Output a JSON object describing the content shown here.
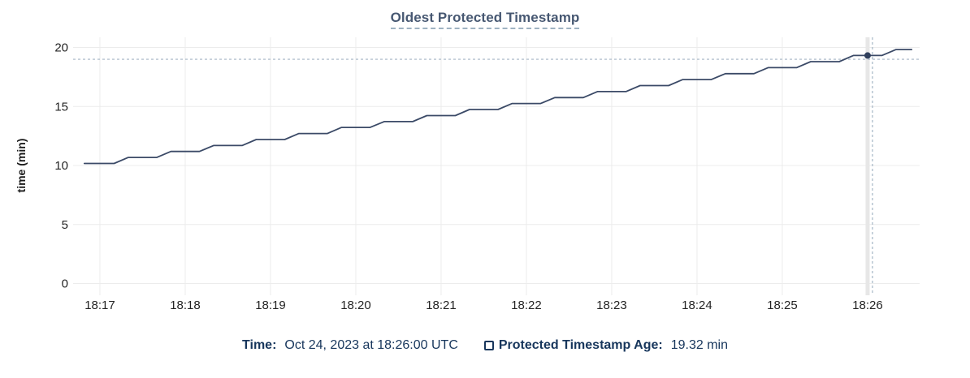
{
  "title": "Oldest Protected Timestamp",
  "y_axis_label": "time (min)",
  "legend": {
    "time_label": "Time:",
    "time_value": "Oct 24, 2023 at 18:26:00 UTC",
    "series_label": "Protected Timestamp Age:",
    "series_value": "19.32 min"
  },
  "colors": {
    "line": "#3b4a67",
    "marker": "#303f5c",
    "title_text": "#475872",
    "legend_text": "#17365c",
    "grid": "#ececec",
    "hover_band": "#e7e7e7",
    "crosshair": "#a4b5c4",
    "tick_text": "#242424"
  },
  "chart_data": {
    "type": "line",
    "title": "Oldest Protected Timestamp",
    "xlabel": "",
    "ylabel": "time (min)",
    "grid": true,
    "legend_position": "bottom",
    "x_tick_labels": [
      "18:17",
      "18:18",
      "18:19",
      "18:20",
      "18:21",
      "18:22",
      "18:23",
      "18:24",
      "18:25",
      "18:26"
    ],
    "x_tick_minutes": [
      0,
      1,
      2,
      3,
      4,
      5,
      6,
      7,
      8,
      9
    ],
    "x_range_minutes": [
      -0.314,
      9.61
    ],
    "ylim": [
      0,
      20
    ],
    "y_ticks": [
      0,
      5,
      10,
      15,
      20
    ],
    "series": [
      {
        "name": "Protected Timestamp Age",
        "unit": "min",
        "points": [
          [
            -0.183,
            10.17
          ],
          [
            0.167,
            10.17
          ],
          [
            0.333,
            10.68
          ],
          [
            0.667,
            10.68
          ],
          [
            0.833,
            11.19
          ],
          [
            1.167,
            11.19
          ],
          [
            1.333,
            11.69
          ],
          [
            1.667,
            11.69
          ],
          [
            1.833,
            12.2
          ],
          [
            2.167,
            12.2
          ],
          [
            2.333,
            12.71
          ],
          [
            2.667,
            12.71
          ],
          [
            2.833,
            13.22
          ],
          [
            3.167,
            13.22
          ],
          [
            3.333,
            13.72
          ],
          [
            3.667,
            13.72
          ],
          [
            3.833,
            14.23
          ],
          [
            4.167,
            14.23
          ],
          [
            4.333,
            14.74
          ],
          [
            4.667,
            14.74
          ],
          [
            4.833,
            15.25
          ],
          [
            5.167,
            15.25
          ],
          [
            5.333,
            15.75
          ],
          [
            5.667,
            15.75
          ],
          [
            5.833,
            16.26
          ],
          [
            6.167,
            16.26
          ],
          [
            6.333,
            16.77
          ],
          [
            6.667,
            16.77
          ],
          [
            6.833,
            17.28
          ],
          [
            7.167,
            17.28
          ],
          [
            7.333,
            17.78
          ],
          [
            7.667,
            17.78
          ],
          [
            7.833,
            18.29
          ],
          [
            8.167,
            18.29
          ],
          [
            8.333,
            18.8
          ],
          [
            8.667,
            18.8
          ],
          [
            8.833,
            19.32
          ],
          [
            9.167,
            19.32
          ],
          [
            9.333,
            19.82
          ],
          [
            9.517,
            19.82
          ]
        ]
      }
    ],
    "highlight": {
      "x_minutes": 9.0,
      "x_label": "18:26:00",
      "value": 19.32,
      "crosshair_x_minutes": 9.057,
      "crosshair_y_value": 19.0
    }
  }
}
